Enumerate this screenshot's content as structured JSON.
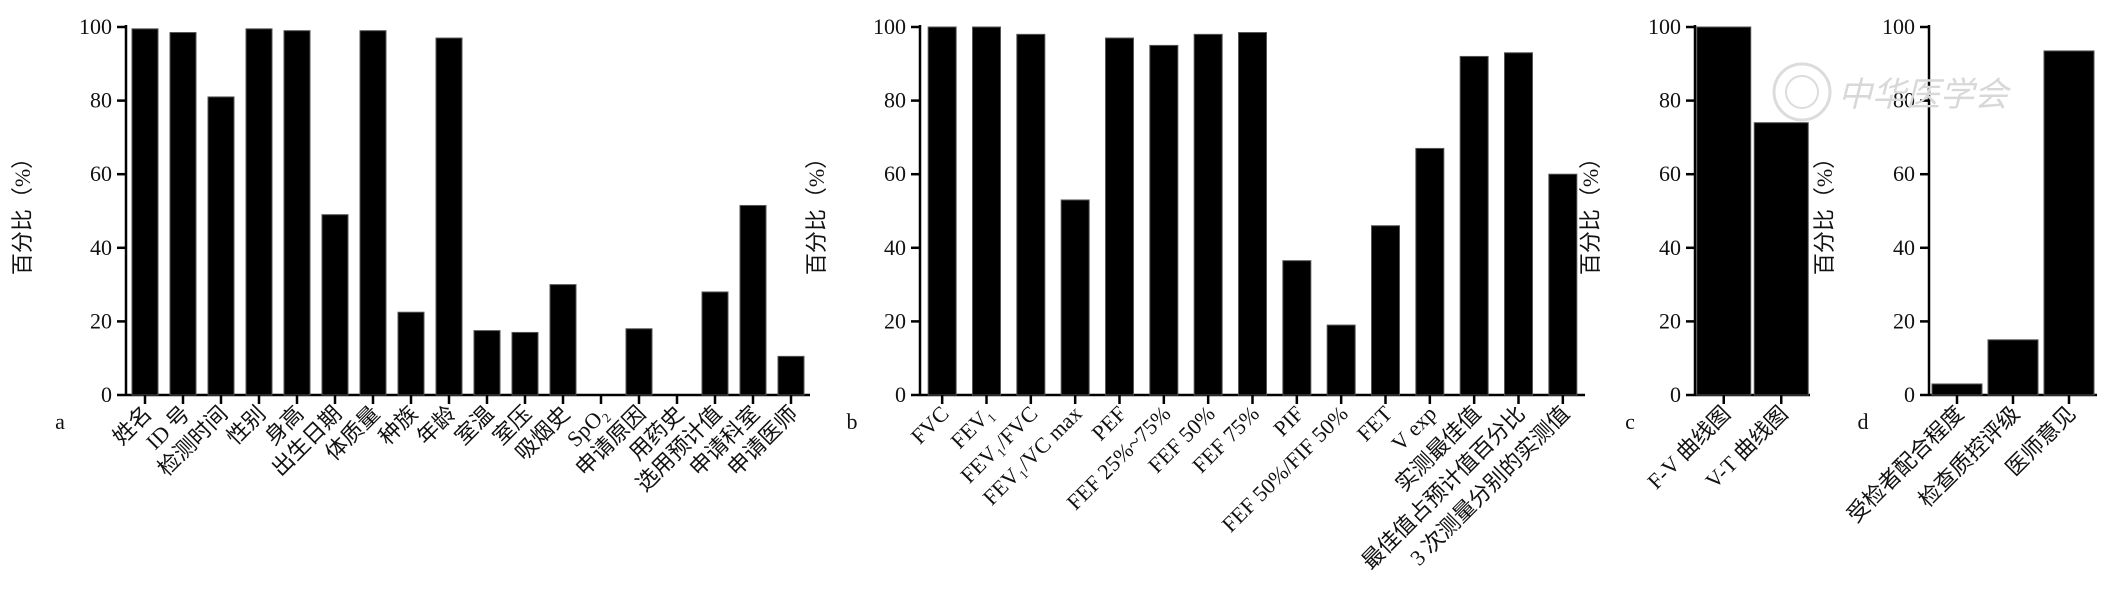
{
  "chart_data": [
    {
      "panel": "a",
      "type": "bar",
      "ylabel": "百分比（%）",
      "ylim": [
        0,
        100
      ],
      "yticks": [
        0,
        20,
        40,
        60,
        80,
        100
      ],
      "categories": [
        "姓名",
        "ID 号",
        "检测时间",
        "性别",
        "身高",
        "出生日期",
        "体质量",
        "种族",
        "年龄",
        "室温",
        "室压",
        "吸烟史",
        "SpO₂",
        "申请原因",
        "用药史",
        "选用预计值",
        "申请科室",
        "申请医师"
      ],
      "values": [
        99.5,
        98.5,
        81,
        99.5,
        99,
        49,
        99,
        22.5,
        97,
        17.5,
        17,
        30,
        0,
        18,
        0,
        28,
        51.5,
        10.5
      ],
      "bar_color": "#000000"
    },
    {
      "panel": "b",
      "type": "bar",
      "ylabel": "百分比（%）",
      "ylim": [
        0,
        100
      ],
      "yticks": [
        0,
        20,
        40,
        60,
        80,
        100
      ],
      "categories": [
        "FVC",
        "FEV₁",
        "FEV₁/FVC",
        "FEV₁/VC max",
        "PEF",
        "FEF 25%~75%",
        "FEF 50%",
        "FEF 75%",
        "PIF",
        "FEF 50%/FIF 50%",
        "FET",
        "V exp",
        "实测最佳值",
        "最佳值占预计值百分比",
        "3 次测量分别的实测值"
      ],
      "values": [
        100,
        100,
        98,
        53,
        97,
        95,
        98,
        98.5,
        36.5,
        19,
        46,
        67,
        92,
        93,
        60
      ],
      "bar_color": "#000000"
    },
    {
      "panel": "c",
      "type": "bar",
      "ylabel": "百分比（%）",
      "ylim": [
        0,
        100
      ],
      "yticks": [
        0,
        20,
        40,
        60,
        80,
        100
      ],
      "categories": [
        "F-V 曲线图",
        "V-T 曲线图"
      ],
      "values": [
        100,
        74
      ],
      "bar_color": "#000000"
    },
    {
      "panel": "d",
      "type": "bar",
      "ylabel": "百分比（%）",
      "ylim": [
        0,
        100
      ],
      "yticks": [
        0,
        20,
        40,
        60,
        80,
        100
      ],
      "categories": [
        "受检者配合程度",
        "检查质控评级",
        "医师意见"
      ],
      "values": [
        3,
        15,
        93.5
      ],
      "bar_color": "#000000"
    }
  ],
  "watermark": {
    "text": "中华医学会"
  }
}
